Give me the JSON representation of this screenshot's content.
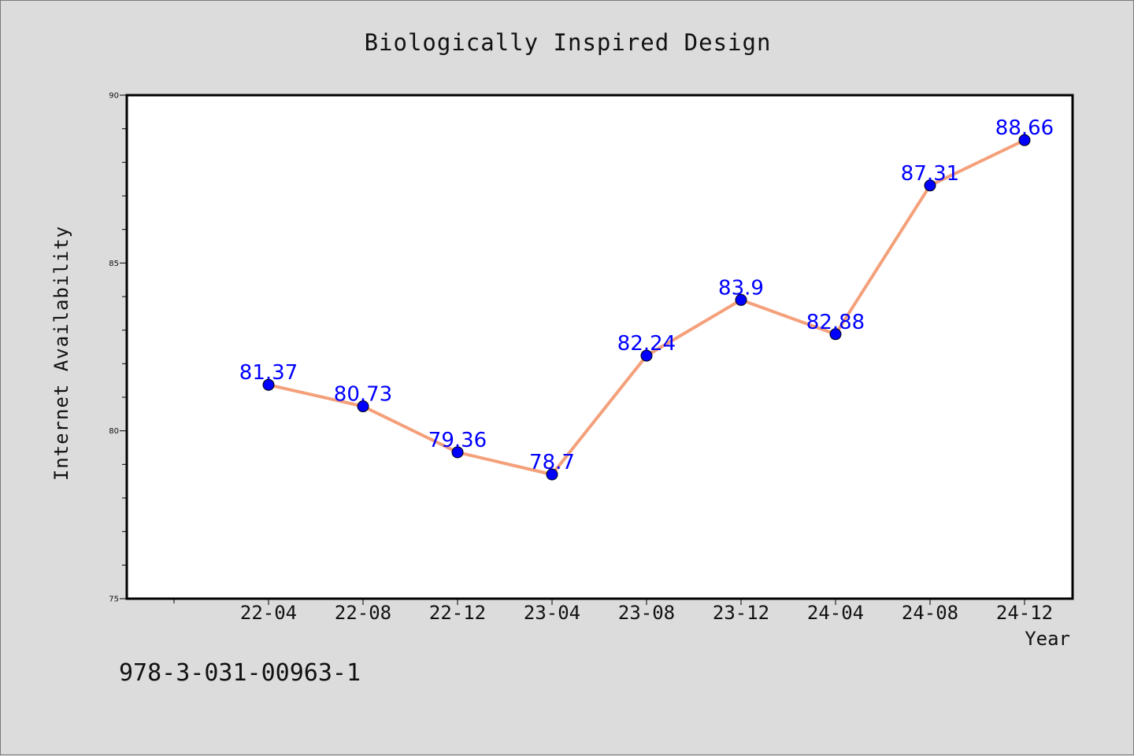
{
  "chart_data": {
    "type": "line",
    "title": "Biologically Inspired Design",
    "xlabel": "Year",
    "ylabel": "Internet Availability",
    "categories": [
      "22-04",
      "22-08",
      "22-12",
      "23-04",
      "23-08",
      "23-12",
      "24-04",
      "24-08",
      "24-12"
    ],
    "series": [
      {
        "values": [
          81.37,
          80.73,
          79.36,
          78.7,
          82.24,
          83.9,
          82.88,
          87.31,
          88.66
        ],
        "labels": [
          "81.37",
          "80.73",
          "79.36",
          "78.7",
          "82.24",
          "83.9",
          "82.88",
          "87.31",
          "88.66"
        ],
        "line_color": "#f4a07a",
        "marker_color": "#0000ff"
      }
    ],
    "ylim": [
      75,
      90
    ],
    "yticks": [
      "75",
      "80",
      "85",
      "90"
    ],
    "grid": false,
    "legend": "none"
  },
  "footer_text": "978-3-031-00963-1"
}
